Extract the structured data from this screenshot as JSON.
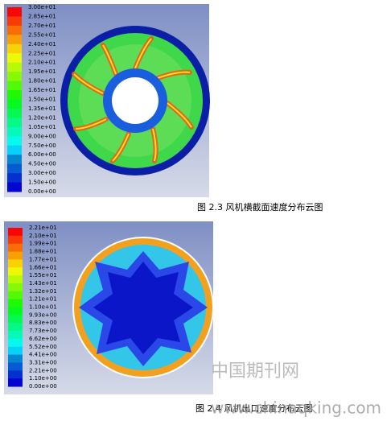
{
  "figure1": {
    "legend_labels": [
      "3.00e+01",
      "2.85e+01",
      "2.70e+01",
      "2.55e+01",
      "2.40e+01",
      "2.25e+01",
      "2.10e+01",
      "1.95e+01",
      "1.80e+01",
      "1.65e+01",
      "1.50e+01",
      "1.35e+01",
      "1.20e+01",
      "1.05e+01",
      "9.00e+00",
      "7.50e+00",
      "6.00e+00",
      "4.50e+00",
      "3.00e+00",
      "1.50e+00",
      "0.00e+00"
    ],
    "caption": "图 2.3 风机横截面速度分布云图"
  },
  "figure2": {
    "legend_labels": [
      "2.21e+01",
      "2.10e+01",
      "1.99e+01",
      "1.88e+01",
      "1.77e+01",
      "1.66e+01",
      "1.55e+01",
      "1.43e+01",
      "1.32e+01",
      "1.21e+01",
      "1.10e+01",
      "9.93e+00",
      "8.83e+00",
      "7.73e+00",
      "6.62e+00",
      "5.52e+00",
      "4.41e+00",
      "3.31e+00",
      "2.21e+00",
      "1.10e+00",
      "0.00e+00"
    ],
    "caption": "图 2.4 风机出口速度分布云图"
  },
  "watermark": {
    "name": "中国期刊网",
    "url": "www.chinaqking.com"
  }
}
